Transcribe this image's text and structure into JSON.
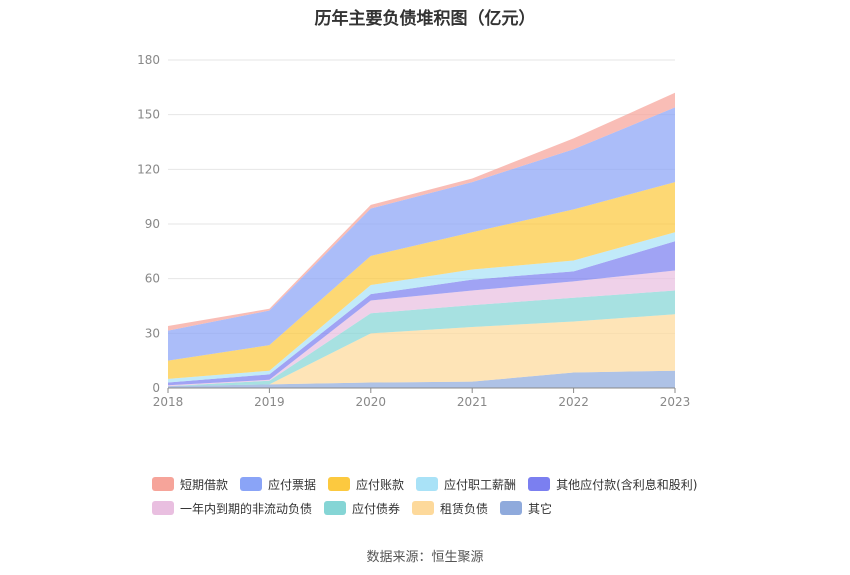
{
  "chart_data": {
    "type": "area",
    "stacked": true,
    "title": "历年主要负债堆积图（亿元）",
    "categories": [
      "2018",
      "2019",
      "2020",
      "2021",
      "2022",
      "2023"
    ],
    "ylim": [
      0,
      180
    ],
    "yticks": [
      0,
      30,
      60,
      90,
      120,
      150,
      180
    ],
    "series": [
      {
        "name": "其它",
        "color": "#8faadc",
        "values": [
          1,
          2,
          3,
          3.5,
          8.5,
          9.5
        ]
      },
      {
        "name": "租赁负债",
        "color": "#fdd99b",
        "values": [
          0,
          0,
          27,
          30,
          28,
          31
        ]
      },
      {
        "name": "应付债券",
        "color": "#85d5d5",
        "values": [
          0,
          2,
          11,
          12,
          13,
          13
        ]
      },
      {
        "name": "一年内到期的非流动负债",
        "color": "#e9bfe0",
        "values": [
          0.5,
          0.5,
          7,
          8,
          9,
          11
        ]
      },
      {
        "name": "其他应付款(含利息和股利)",
        "color": "#7b7ff0",
        "values": [
          1.5,
          3,
          3.5,
          6,
          5.5,
          16
        ]
      },
      {
        "name": "应付职工薪酬",
        "color": "#a9e2f7",
        "values": [
          2,
          2,
          5,
          5.5,
          6,
          5
        ]
      },
      {
        "name": "应付账款",
        "color": "#fcc93f",
        "values": [
          10,
          14,
          16,
          20.5,
          28,
          27.5
        ]
      },
      {
        "name": "应付票据",
        "color": "#8aa4f7",
        "values": [
          16.5,
          19,
          26,
          27.5,
          33,
          41
        ]
      },
      {
        "name": "短期借款",
        "color": "#f6a49a",
        "values": [
          2.5,
          1,
          2,
          2,
          6,
          8
        ]
      }
    ],
    "legend": {
      "position": "bottom",
      "rows": [
        [
          "短期借款",
          "应付票据",
          "应付账款",
          "应付职工薪酬",
          "其他应付款(含利息和股利)"
        ],
        [
          "一年内到期的非流动负债",
          "应付债券",
          "租赁负债",
          "其它"
        ]
      ]
    },
    "source": "数据来源：恒生聚源"
  }
}
